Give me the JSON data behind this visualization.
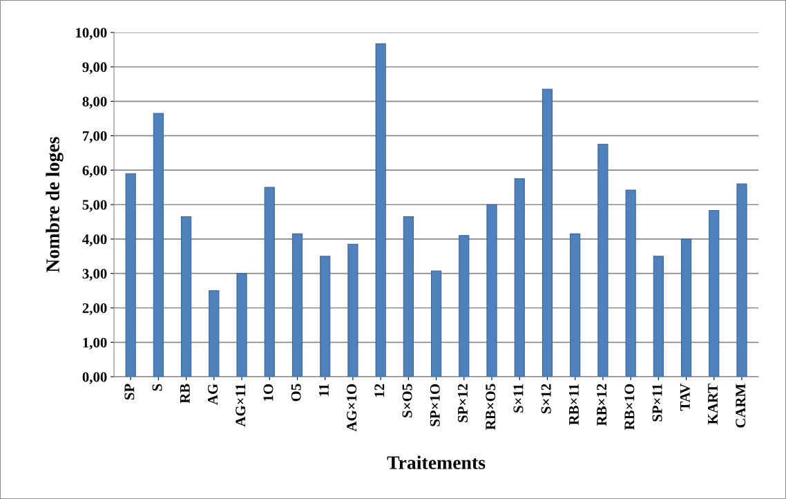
{
  "chart_data": {
    "type": "bar",
    "xlabel": "Traitements",
    "ylabel": "Nombre de loges",
    "categories": [
      "SP",
      "S",
      "RB",
      "AG",
      "AG×11",
      "1O",
      "O5",
      "11",
      "AG×1O",
      "12",
      "S×O5",
      "SP×1O",
      "SP×12",
      "RB×O5",
      "S×11",
      "S×12",
      "RB×11",
      "RB×12",
      "RB×1O",
      "SP×11",
      "TAV",
      "KART",
      "CARM"
    ],
    "values": [
      5.9,
      7.65,
      4.65,
      2.5,
      3.0,
      5.5,
      4.15,
      3.5,
      3.85,
      9.67,
      4.65,
      3.07,
      4.1,
      5.0,
      5.75,
      8.35,
      4.15,
      6.75,
      5.42,
      3.5,
      4.0,
      4.83,
      5.6
    ],
    "color": "#4f81bd",
    "ylim": [
      0,
      10
    ],
    "yticks": [
      {
        "value": 0,
        "label": "0,00"
      },
      {
        "value": 1,
        "label": "1,00"
      },
      {
        "value": 2,
        "label": "2,00"
      },
      {
        "value": 3,
        "label": "3,00"
      },
      {
        "value": 4,
        "label": "4,00"
      },
      {
        "value": 5,
        "label": "5,00"
      },
      {
        "value": 6,
        "label": "6,00"
      },
      {
        "value": 7,
        "label": "7,00"
      },
      {
        "value": 8,
        "label": "8,00"
      },
      {
        "value": 9,
        "label": "9,00"
      },
      {
        "value": 10,
        "label": "10,00"
      }
    ],
    "grid": "y",
    "legend": false
  }
}
